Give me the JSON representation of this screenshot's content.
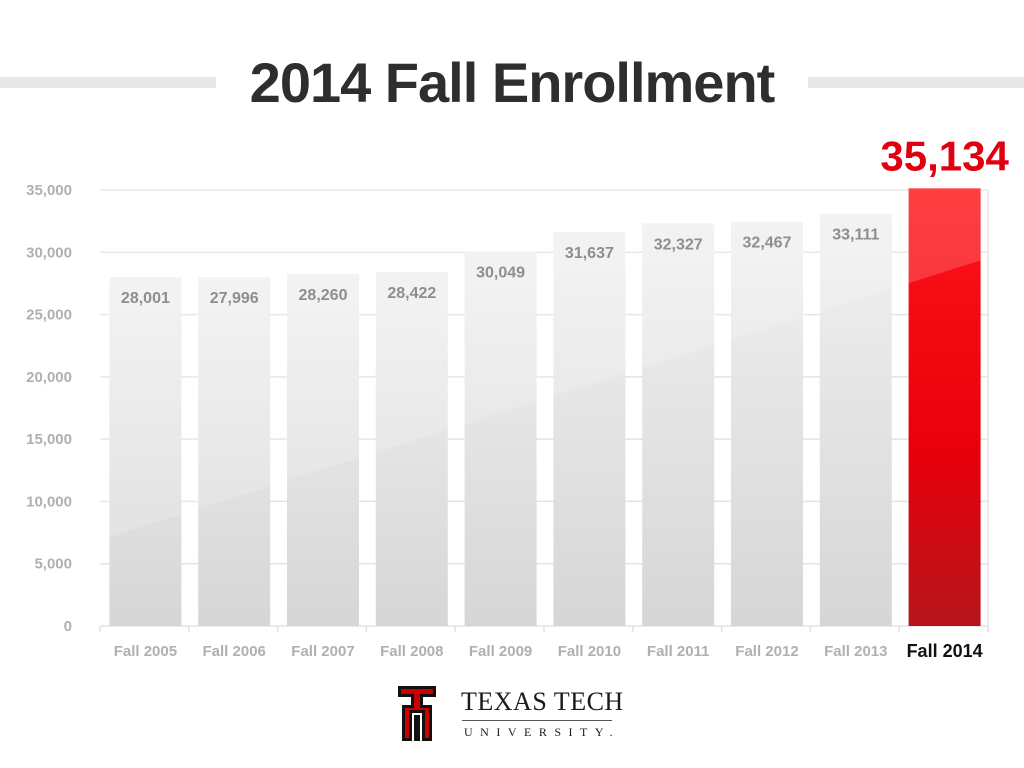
{
  "chart_data": {
    "type": "bar",
    "title": "2014 Fall Enrollment",
    "categories": [
      "Fall 2005",
      "Fall 2006",
      "Fall 2007",
      "Fall 2008",
      "Fall 2009",
      "Fall 2010",
      "Fall 2011",
      "Fall 2012",
      "Fall 2013",
      "Fall 2014"
    ],
    "values": [
      28001,
      27996,
      28260,
      28422,
      30049,
      31637,
      32327,
      32467,
      33111,
      35134
    ],
    "value_labels": [
      "28,001",
      "27,996",
      "28,260",
      "28,422",
      "30,049",
      "31,637",
      "32,327",
      "32,467",
      "33,111",
      "35,134"
    ],
    "highlight_index": 9,
    "ylim": [
      0,
      35000
    ],
    "yticks": [
      0,
      5000,
      10000,
      15000,
      20000,
      25000,
      30000,
      35000
    ],
    "ytick_labels": [
      "0",
      "5,000",
      "10,000",
      "15,000",
      "20,000",
      "25,000",
      "30,000",
      "35,000"
    ],
    "xlabel": "",
    "ylabel": "",
    "grid": true,
    "legend": "none",
    "colors": {
      "bar": "#e6e6e6",
      "highlight": "#e8000b",
      "highlight_label": "#e10010",
      "bar_label": "#8e8e8e",
      "tick_label": "#b0b0b0",
      "highlight_tick": "#111111",
      "grid": "#e3e3e3"
    }
  },
  "logo": {
    "name": "TEXAS TECH",
    "subtitle": "UNIVERSITY.",
    "colors": {
      "red": "#cc0000",
      "black": "#111111"
    }
  }
}
